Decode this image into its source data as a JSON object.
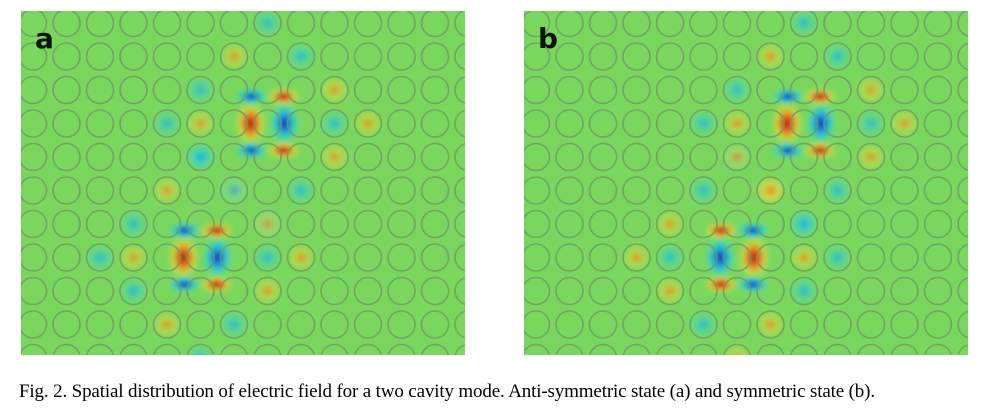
{
  "figure": {
    "panels": [
      {
        "label": "a",
        "state": "anti-symmetric",
        "cavities": [
          {
            "row": 3,
            "col": 7,
            "left_lobe": "red",
            "right_lobe": "blue"
          },
          {
            "row": 7,
            "col": 5,
            "left_lobe": "red",
            "right_lobe": "blue"
          }
        ]
      },
      {
        "label": "b",
        "state": "symmetric",
        "cavities": [
          {
            "row": 3,
            "col": 8,
            "left_lobe": "red",
            "right_lobe": "blue"
          },
          {
            "row": 7,
            "col": 6,
            "left_lobe": "blue",
            "right_lobe": "red"
          }
        ]
      }
    ],
    "caption": "Fig. 2. Spatial distribution of electric field for a two cavity mode.  Anti-symmetric state (a) and symmetric state (b).",
    "colors": {
      "background_field": "#7ad75e",
      "lattice_circle": "#6f9a66",
      "positive_max": "#b01010",
      "positive": "#f07a1a",
      "positive_weak": "#e8e040",
      "negative_max": "#1020b0",
      "negative": "#1aa8e8",
      "negative_weak": "#3ed8c4"
    }
  }
}
